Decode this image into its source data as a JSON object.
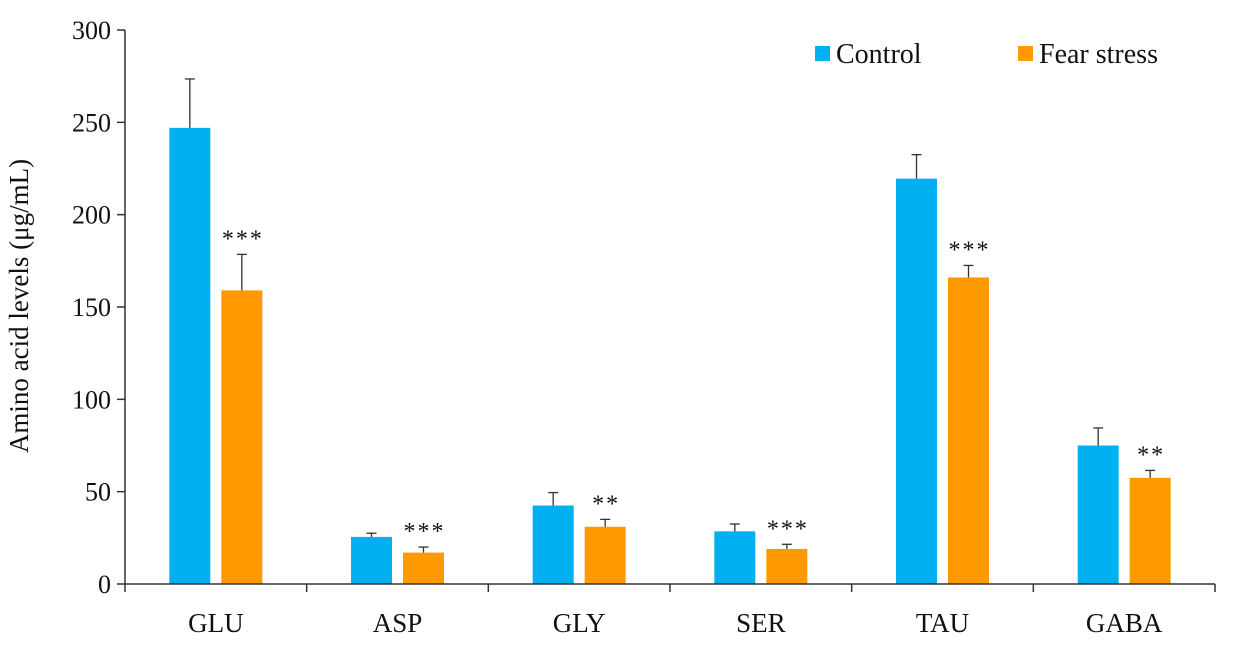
{
  "chart_data": {
    "type": "bar",
    "title": "",
    "xlabel": "",
    "ylabel": "Amino acid levels (μg/mL)",
    "ylim": [
      0,
      300
    ],
    "yticks": [
      0,
      50,
      100,
      150,
      200,
      250,
      300
    ],
    "grid": false,
    "legend_position": "top-right",
    "categories": [
      "GLU",
      "ASP",
      "GLY",
      "SER",
      "TAU",
      "GABA"
    ],
    "series": [
      {
        "name": "Control",
        "color": "#00b0f0",
        "values": [
          247,
          25.5,
          42.5,
          28.5,
          219.5,
          75
        ],
        "errors": [
          26.5,
          2,
          7,
          4,
          13,
          9.5
        ],
        "significance": [
          "",
          "",
          "",
          "",
          "",
          ""
        ]
      },
      {
        "name": "Fear stress",
        "color": "#ff9900",
        "values": [
          159,
          17,
          31,
          19,
          166,
          57.5
        ],
        "errors": [
          19.5,
          3,
          4,
          2.5,
          6.5,
          4
        ],
        "significance": [
          "***",
          "***",
          "**",
          "***",
          "***",
          "**"
        ]
      }
    ]
  }
}
